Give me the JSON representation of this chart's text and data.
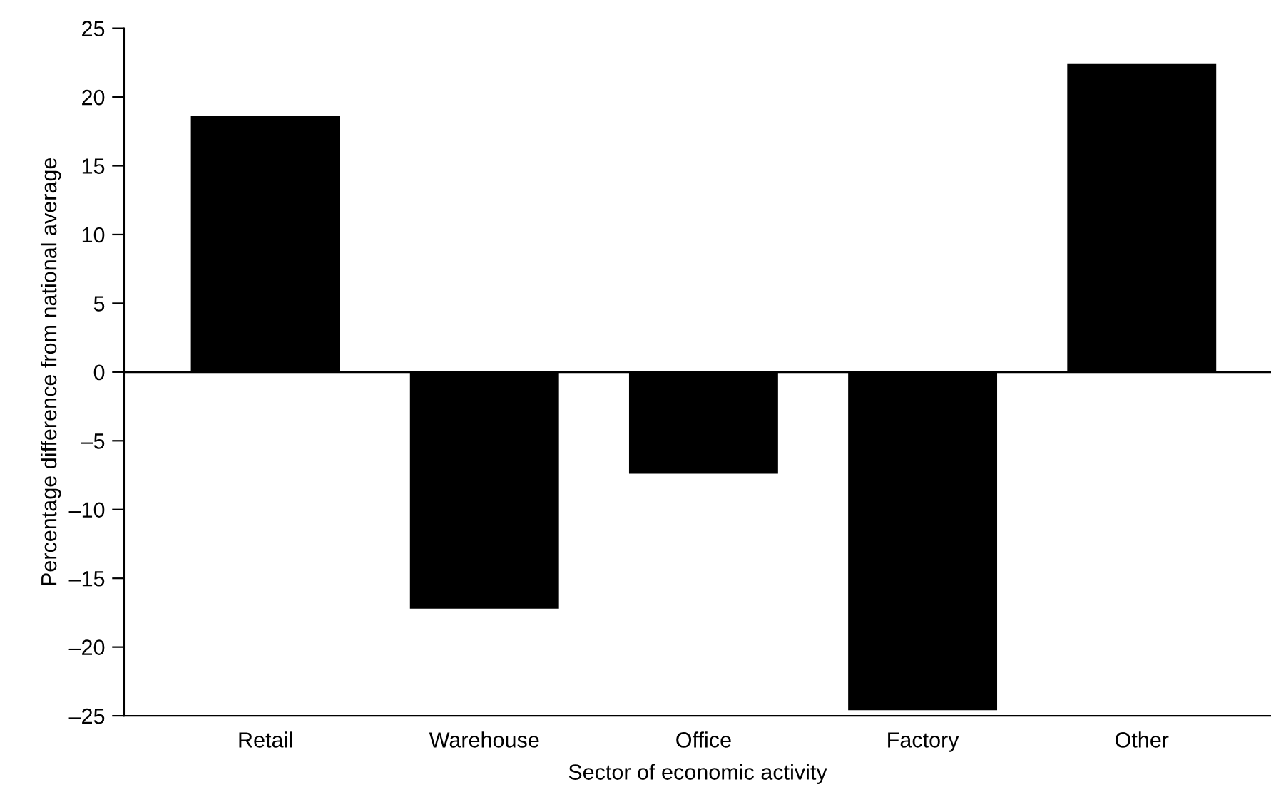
{
  "chart_data": {
    "type": "bar",
    "xlabel": "Sector of economic activity",
    "ylabel": "Percentage difference from national average",
    "categories": [
      "Retail",
      "Warehouse",
      "Office",
      "Factory",
      "Other"
    ],
    "values": [
      18.6,
      -17.2,
      -7.4,
      -24.6,
      22.4
    ],
    "color": "#000000",
    "ylim": [
      -25,
      25
    ],
    "yticks": [
      {
        "value": -25,
        "label": "–25"
      },
      {
        "value": -20,
        "label": "–20"
      },
      {
        "value": -15,
        "label": "–15"
      },
      {
        "value": -10,
        "label": "–10"
      },
      {
        "value": -5,
        "label": "–5"
      },
      0,
      5,
      10,
      15,
      20,
      25
    ],
    "ref_lines": [
      {
        "axis": "y",
        "value": 0,
        "color": "#000000"
      }
    ],
    "grid": false,
    "legend": false
  }
}
